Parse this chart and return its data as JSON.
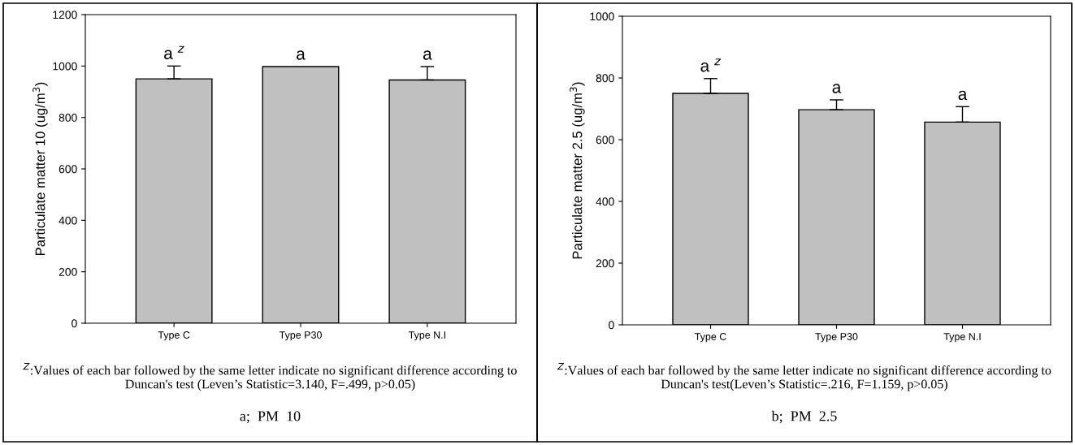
{
  "chart_data": [
    {
      "type": "bar",
      "ylabel": "Particulate matter 10 (ug/m$^{3}$)",
      "categories": [
        "Type C",
        "Type P30",
        "Type N.I"
      ],
      "values": [
        950,
        998,
        946
      ],
      "errors": [
        [
          950,
          1000
        ],
        null,
        [
          946,
          998
        ]
      ],
      "color": "#c0c0c0",
      "ylim": [
        0,
        1200
      ],
      "yticks": [
        0,
        200,
        400,
        600,
        800,
        1000,
        1200
      ],
      "grid": false,
      "annotations": [
        "a $^{z}$",
        "a",
        "a",
        "$^{Z}$:Values of each bar followed by the same letter indicate no significant difference according to Duncan's test (Leven’s Statistic=3.140, F=.499, p>0.05)",
        "a;  PM  10"
      ]
    },
    {
      "type": "bar",
      "ylabel": "Particulate matter 2.5 (ug/m$^{3}$)",
      "categories": [
        "Type C",
        "Type P30",
        "Type N.I"
      ],
      "values": [
        750,
        697,
        657
      ],
      "errors": [
        [
          750,
          798
        ],
        [
          697,
          729
        ],
        [
          657,
          707
        ]
      ],
      "color": "#c0c0c0",
      "ylim": [
        0,
        1000
      ],
      "yticks": [
        0,
        200,
        400,
        600,
        800,
        1000
      ],
      "grid": false,
      "annotations": [
        "a $^{z}$",
        "a",
        "a",
        "$^{Z}$:Values of each bar followed by the same letter indicate no significant difference according to Duncan's test(Leven’s Statistic=.216, F=1.159, p>0.05)",
        "b;  PM  2.5"
      ]
    }
  ]
}
